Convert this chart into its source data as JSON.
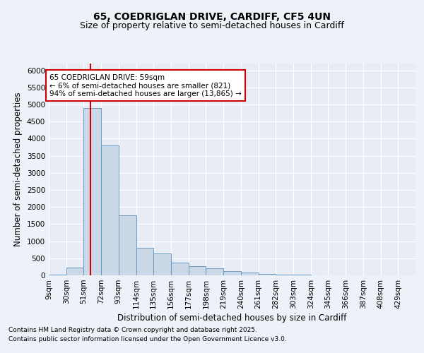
{
  "title_line1": "65, COEDRIGLAN DRIVE, CARDIFF, CF5 4UN",
  "title_line2": "Size of property relative to semi-detached houses in Cardiff",
  "xlabel": "Distribution of semi-detached houses by size in Cardiff",
  "ylabel": "Number of semi-detached properties",
  "footnote1": "Contains HM Land Registry data © Crown copyright and database right 2025.",
  "footnote2": "Contains public sector information licensed under the Open Government Licence v3.0.",
  "annotation_title": "65 COEDRIGLAN DRIVE: 59sqm",
  "annotation_line1": "← 6% of semi-detached houses are smaller (821)",
  "annotation_line2": "94% of semi-detached houses are larger (13,865) →",
  "bin_labels": [
    "9sqm",
    "30sqm",
    "51sqm",
    "72sqm",
    "93sqm",
    "114sqm",
    "135sqm",
    "156sqm",
    "177sqm",
    "198sqm",
    "219sqm",
    "240sqm",
    "261sqm",
    "282sqm",
    "303sqm",
    "324sqm",
    "345sqm",
    "366sqm",
    "387sqm",
    "408sqm",
    "429sqm"
  ],
  "bin_edges": [
    9,
    30,
    51,
    72,
    93,
    114,
    135,
    156,
    177,
    198,
    219,
    240,
    261,
    282,
    303,
    324,
    345,
    366,
    387,
    408,
    429
  ],
  "bar_values": [
    30,
    230,
    4900,
    3800,
    1750,
    800,
    650,
    380,
    270,
    200,
    130,
    90,
    50,
    25,
    12,
    8,
    4,
    2,
    1,
    1,
    0
  ],
  "bar_color": "#cad8e8",
  "bar_edge_color": "#6090b8",
  "vline_color": "#cc0000",
  "vline_x": 59,
  "ylim": [
    0,
    6200
  ],
  "yticks": [
    0,
    500,
    1000,
    1500,
    2000,
    2500,
    3000,
    3500,
    4000,
    4500,
    5000,
    5500,
    6000
  ],
  "bg_color": "#edf1f8",
  "plot_bg_color": "#e8edf5",
  "grid_color": "#ffffff",
  "annotation_box_color": "#cc0000",
  "title_fontsize": 10,
  "subtitle_fontsize": 9,
  "axis_label_fontsize": 8.5,
  "tick_fontsize": 7.5,
  "annotation_fontsize": 7.5,
  "footnote_fontsize": 6.5
}
